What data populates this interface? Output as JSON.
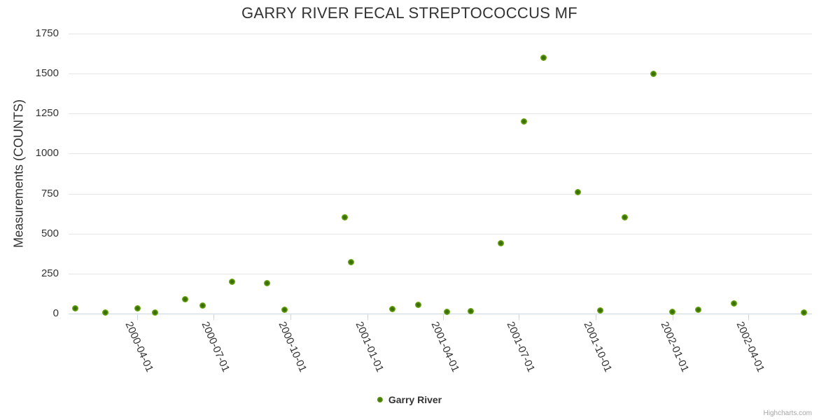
{
  "chart": {
    "credits": "Highcharts.com"
  },
  "chart_data": {
    "type": "scatter",
    "title": "GARRY RIVER FECAL STREPTOCOCCUS MF",
    "xlabel": "",
    "ylabel": "Measurements (COUNTS)",
    "ylim": [
      0,
      1750
    ],
    "y_tick_interval": 250,
    "y_ticks": [
      0,
      250,
      500,
      750,
      1000,
      1250,
      1500,
      1750
    ],
    "x_range": [
      "2000-01-10",
      "2002-06-16"
    ],
    "x_ticks": [
      "2000-04-01",
      "2000-07-01",
      "2000-10-01",
      "2001-01-01",
      "2001-04-01",
      "2001-07-01",
      "2001-10-01",
      "2002-01-01",
      "2002-04-01"
    ],
    "grid": true,
    "legend_position": "bottom",
    "series": [
      {
        "name": "Garry River",
        "color": "#67a60e",
        "points": [
          {
            "x": "2000-01-18",
            "y": 35
          },
          {
            "x": "2000-02-23",
            "y": 8
          },
          {
            "x": "2000-04-01",
            "y": 35
          },
          {
            "x": "2000-04-22",
            "y": 5
          },
          {
            "x": "2000-05-28",
            "y": 90
          },
          {
            "x": "2000-06-18",
            "y": 50
          },
          {
            "x": "2000-07-23",
            "y": 200
          },
          {
            "x": "2000-09-03",
            "y": 190
          },
          {
            "x": "2000-09-24",
            "y": 25
          },
          {
            "x": "2000-12-05",
            "y": 600
          },
          {
            "x": "2000-12-12",
            "y": 320
          },
          {
            "x": "2001-01-31",
            "y": 30
          },
          {
            "x": "2001-03-03",
            "y": 55
          },
          {
            "x": "2001-04-06",
            "y": 10
          },
          {
            "x": "2001-05-04",
            "y": 15
          },
          {
            "x": "2001-06-09",
            "y": 440
          },
          {
            "x": "2001-07-07",
            "y": 1200
          },
          {
            "x": "2001-07-30",
            "y": 1600
          },
          {
            "x": "2001-09-09",
            "y": 760
          },
          {
            "x": "2001-10-06",
            "y": 20
          },
          {
            "x": "2001-11-04",
            "y": 600
          },
          {
            "x": "2001-12-09",
            "y": 1500
          },
          {
            "x": "2001-12-31",
            "y": 10
          },
          {
            "x": "2002-01-31",
            "y": 25
          },
          {
            "x": "2002-03-15",
            "y": 65
          },
          {
            "x": "2002-06-06",
            "y": 5
          }
        ]
      }
    ]
  }
}
